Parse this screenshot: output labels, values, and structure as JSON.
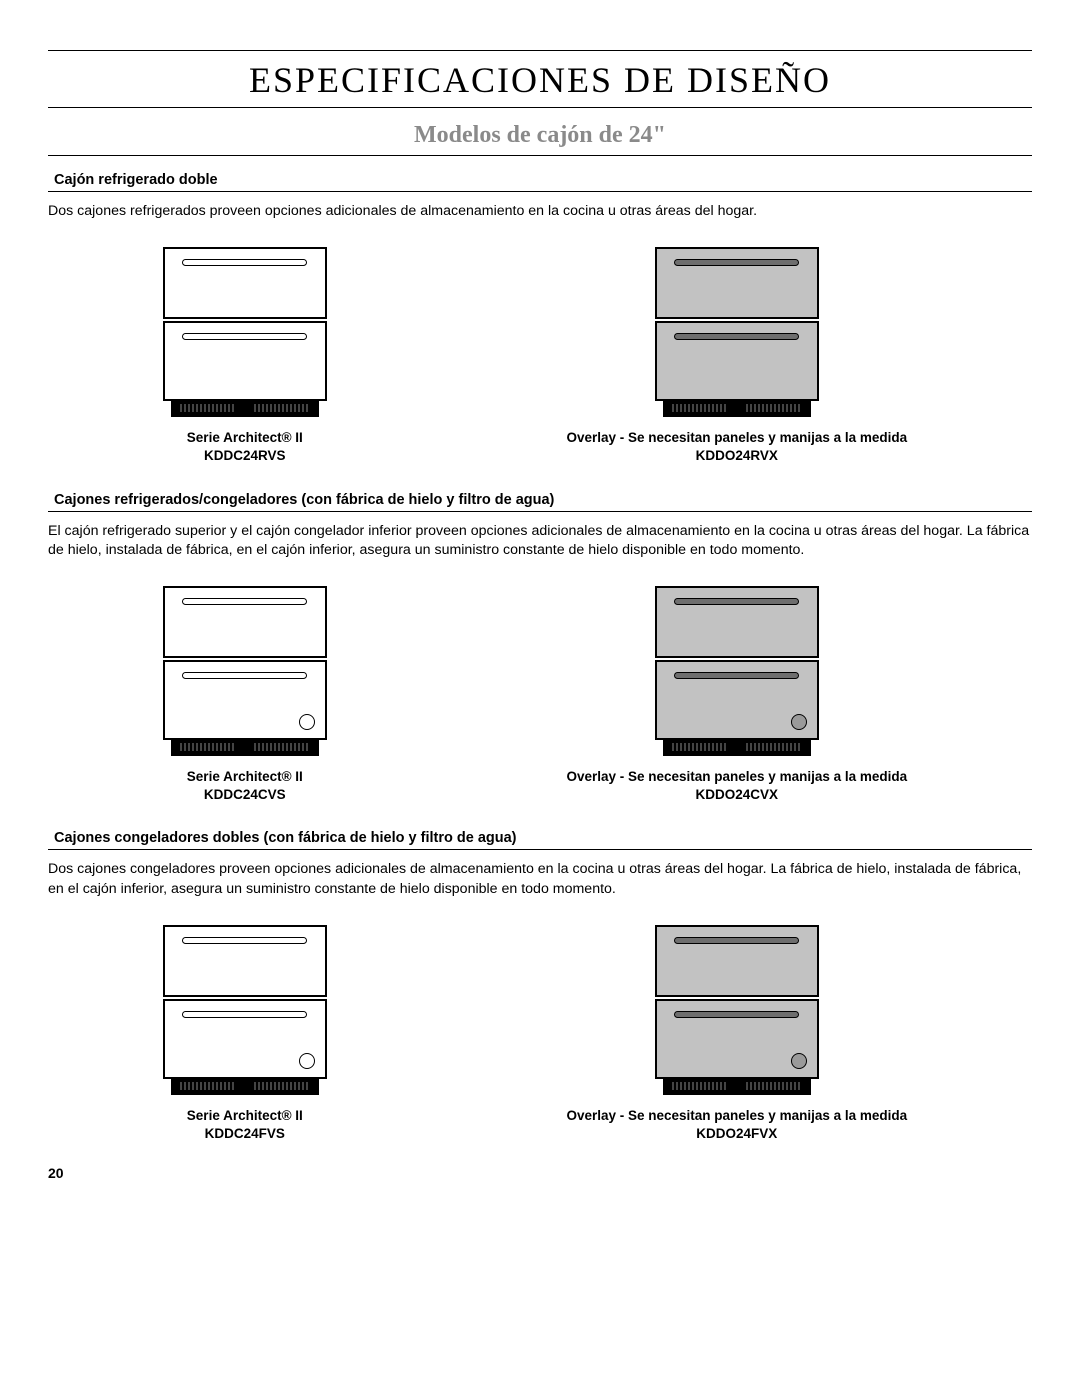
{
  "title": "ESPECIFICACIONES DE DISEÑO",
  "subtitle": "Modelos de cajón de 24\"",
  "page_number": "20",
  "sections": [
    {
      "heading": "Cajón refrigerado doble",
      "description": "Dos cajones refrigerados proveen opciones adicionales de almacenamiento en la cocina u otras áreas del hogar.",
      "has_dispenser": false,
      "left": {
        "series": "Serie Architect® II",
        "model": "KDDC24RVS"
      },
      "right": {
        "series": "Overlay - Se necesitan paneles y manijas a la medida",
        "model": "KDDO24RVX"
      }
    },
    {
      "heading": "Cajones refrigerados/congeladores (con fábrica de hielo y filtro de agua)",
      "description": "El cajón refrigerado superior y el cajón congelador inferior proveen opciones adicionales de almacenamiento en la cocina u otras áreas del hogar. La fábrica de hielo, instalada de fábrica, en el cajón inferior, asegura un suministro constante de hielo disponible en todo momento.",
      "has_dispenser": true,
      "left": {
        "series": "Serie Architect® II",
        "model": "KDDC24CVS"
      },
      "right": {
        "series": "Overlay - Se necesitan paneles y manijas a la medida",
        "model": "KDDO24CVX"
      }
    },
    {
      "heading": "Cajones congeladores dobles (con fábrica de hielo y filtro de agua)",
      "description": "Dos cajones congeladores proveen opciones adicionales de almacenamiento en la cocina u otras áreas del hogar. La fábrica de hielo, instalada de fábrica, en el cajón inferior, asegura un suministro constante de hielo disponible en todo momento.",
      "has_dispenser": true,
      "left": {
        "series": "Serie Architect® II",
        "model": "KDDC24FVS"
      },
      "right": {
        "series": "Overlay - Se necesitan paneles y manijas a la medida",
        "model": "KDDO24FVX"
      }
    }
  ],
  "colors": {
    "text": "#000000",
    "subtitle": "#8a8a8a",
    "overlay_fill": "#c2c2c2",
    "background": "#ffffff"
  }
}
